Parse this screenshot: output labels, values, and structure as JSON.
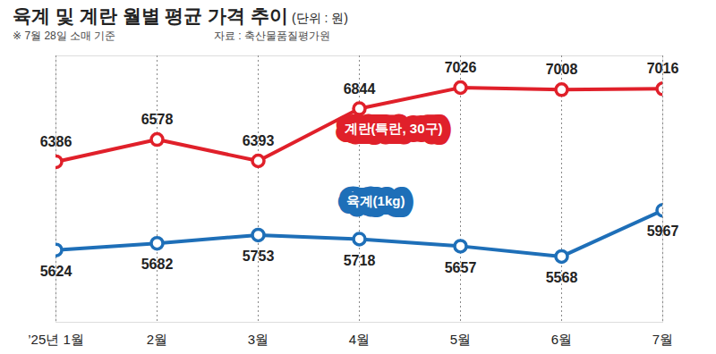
{
  "chart_data": {
    "type": "line",
    "title": "육계 및 계란 월별 평균 가격 추이",
    "subtitle": "(단위 : 원)",
    "annotations": [
      "※ 7월 28일 소매 기준",
      "자료 : 축산물품질평가원"
    ],
    "categories": [
      "’25년 1월",
      "2월",
      "3월",
      "4월",
      "5월",
      "6월",
      "7월"
    ],
    "series": [
      {
        "name": "계란(특란, 30구)",
        "color": "#e0202a",
        "marker": "circle",
        "line_style": "solid",
        "values": [
          6386,
          6578,
          6393,
          6844,
          7026,
          7008,
          7016
        ]
      },
      {
        "name": "육계(1kg)",
        "color": "#1e6fb8",
        "marker": "circle",
        "line_style": "solid",
        "values": [
          5624,
          5682,
          5753,
          5718,
          5657,
          5568,
          5967
        ]
      }
    ],
    "ylim": [
      5000,
      7300
    ],
    "yticks": [],
    "grid": true,
    "data_labels": true,
    "tick_labels": "x"
  }
}
